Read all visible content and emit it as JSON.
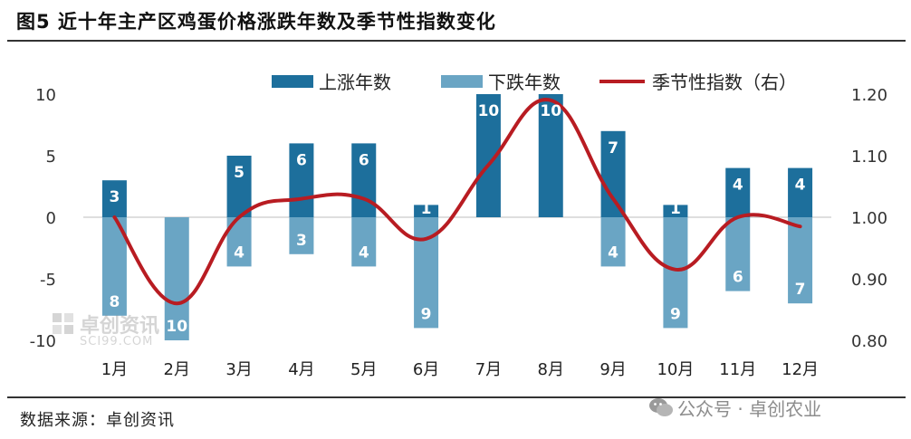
{
  "title": "图5 近十年主产区鸡蛋价格涨跌年数及季节性指数变化",
  "source": "数据来源：卓创资讯",
  "watermark": {
    "chart_main": "卓创资讯",
    "chart_sub": "SCI99.COM",
    "footer": "公众号 · 卓创农业"
  },
  "colors": {
    "up_bar": "#1d6f9c",
    "down_bar": "#6aa5c4",
    "index_line": "#b81c22"
  },
  "chart_data": {
    "type": "bar",
    "categories": [
      "1月",
      "2月",
      "3月",
      "4月",
      "5月",
      "6月",
      "7月",
      "8月",
      "9月",
      "10月",
      "11月",
      "12月"
    ],
    "series": [
      {
        "name": "上涨年数",
        "kind": "bar",
        "axis": "left",
        "values": [
          3,
          0,
          5,
          6,
          6,
          1,
          10,
          10,
          7,
          1,
          4,
          4
        ]
      },
      {
        "name": "下跌年数",
        "kind": "bar",
        "axis": "left",
        "values": [
          8,
          10,
          4,
          3,
          4,
          9,
          0,
          0,
          4,
          9,
          6,
          7
        ]
      },
      {
        "name": "季节性指数（右）",
        "kind": "line",
        "axis": "right",
        "values": [
          1.0,
          0.86,
          1.0,
          1.03,
          1.03,
          0.965,
          1.085,
          1.19,
          1.03,
          0.915,
          1.0,
          0.985
        ]
      }
    ],
    "left_axis": {
      "ylim": [
        -10,
        10
      ],
      "ticks": [
        "10",
        "5",
        "0",
        "-5",
        "-10"
      ]
    },
    "right_axis": {
      "ylim": [
        0.8,
        1.2
      ],
      "ticks": [
        "1.20",
        "1.10",
        "1.00",
        "0.90",
        "0.80"
      ]
    },
    "legend_position": "top"
  }
}
